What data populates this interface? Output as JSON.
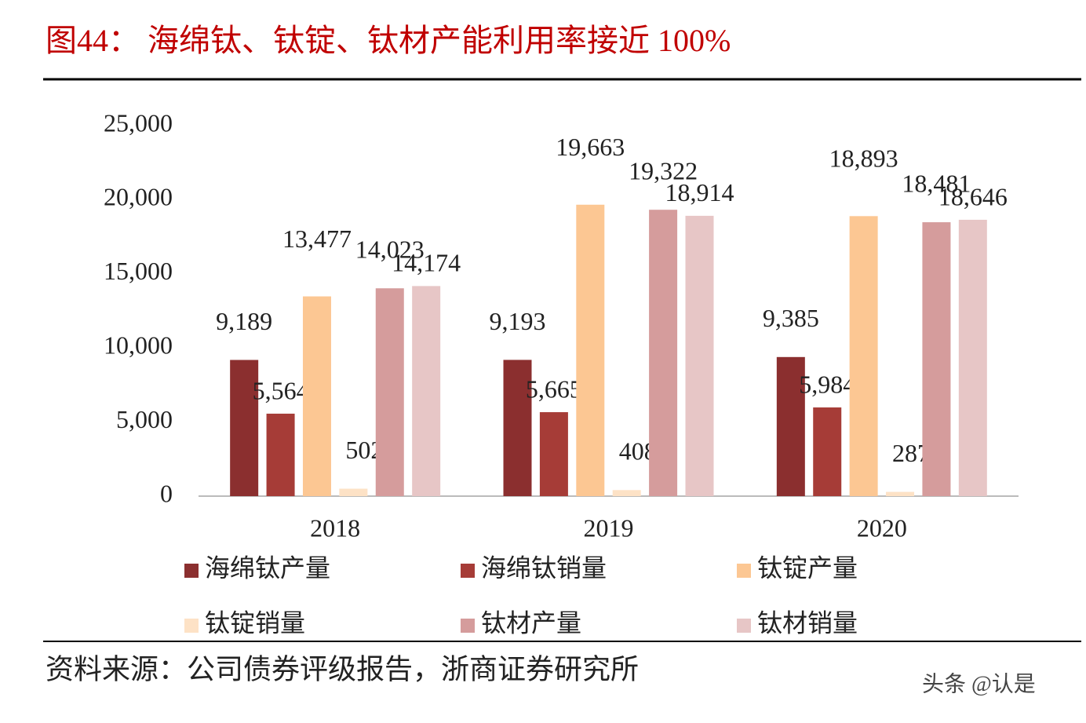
{
  "chart_data": {
    "type": "bar",
    "title": "图44：  海绵钛、钛锭、钛材产能利用率接近 100%",
    "source": "资料来源：公司债券评级报告，浙商证券研究所",
    "watermark": "头条 @认是",
    "categories": [
      "2018",
      "2019",
      "2020"
    ],
    "series": [
      {
        "name": "海绵钛产量",
        "color": "#8b2f2f",
        "values": [
          9189,
          9193,
          9385
        ],
        "value_labels": [
          "9,189",
          "9,193",
          "9,385"
        ]
      },
      {
        "name": "海绵钛销量",
        "color": "#a63c37",
        "values": [
          5564,
          5665,
          5984
        ],
        "value_labels": [
          "5,564",
          "5,665",
          "5,984"
        ]
      },
      {
        "name": "钛锭产量",
        "color": "#fcc793",
        "values": [
          13477,
          19663,
          18893
        ],
        "value_labels": [
          "13,477",
          "19,663",
          "18,893"
        ]
      },
      {
        "name": "钛锭销量",
        "color": "#fde2c6",
        "values": [
          502,
          408,
          287
        ]
      },
      {
        "name": "钛材产量",
        "color": "#d59c9c",
        "values": [
          14023,
          19322,
          18481
        ],
        "value_labels": [
          "14,023",
          "19,322",
          "18,481"
        ]
      },
      {
        "name": "钛材销量",
        "color": "#e7c6c6",
        "values": [
          14174,
          18914,
          18646
        ],
        "value_labels": [
          "14,174",
          "18,914",
          "18,646"
        ]
      }
    ],
    "ylim": [
      0,
      25000
    ],
    "yticks": [
      0,
      {
        "value": 5000,
        "label": "5,000"
      },
      {
        "value": 10000,
        "label": "10,000"
      },
      {
        "value": 15000,
        "label": "15,000"
      },
      {
        "value": 20000,
        "label": "20,000"
      },
      {
        "value": 25000,
        "label": "25,000"
      }
    ],
    "grid": false
  }
}
